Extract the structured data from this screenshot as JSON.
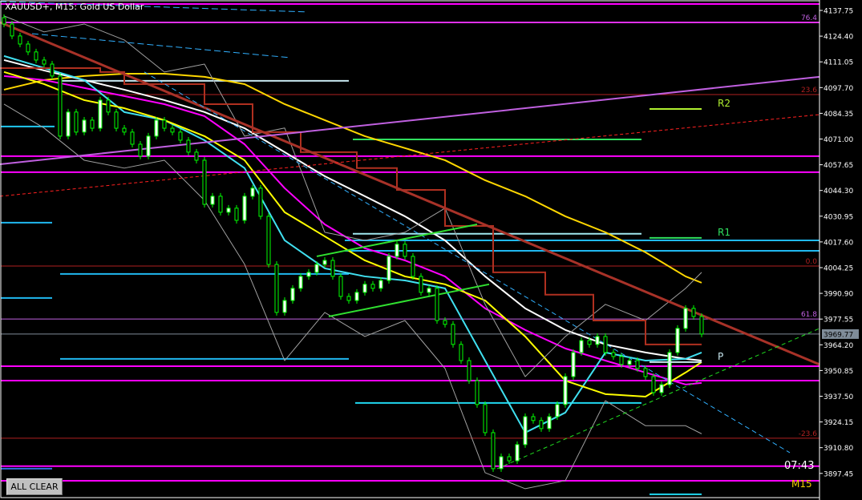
{
  "header": {
    "title": "XAUUSD+, M15:  Gold US Dollar"
  },
  "controls": {
    "all_clear": "ALL CLEAR",
    "timer": "07:43",
    "timeframe": "M15"
  },
  "colors": {
    "background": "#000000",
    "bull": "#00ff00",
    "axis": "#ffffff",
    "price_box": "#7f8c99"
  },
  "chart_data": {
    "type": "candlestick",
    "symbol": "XAUUSD+",
    "timeframe": "M15",
    "ylim": [
      3886,
      4143
    ],
    "y_ticks": [
      "4137.75",
      "4124.40",
      "4111.05",
      "4097.70",
      "4084.35",
      "4071.00",
      "4057.65",
      "4044.30",
      "4030.95",
      "4017.60",
      "4004.25",
      "3990.90",
      "3977.55",
      "3964.20",
      "3950.85",
      "3937.50",
      "3924.15",
      "3910.80",
      "3897.45"
    ],
    "current_price": "3969.77",
    "first_open": 4134.0,
    "close": [
      4130.7,
      4124.5,
      4120.3,
      4116.2,
      4112.0,
      4109.9,
      4103.7,
      4072.5,
      4085.0,
      4074.6,
      4080.8,
      4076.6,
      4091.2,
      4085.0,
      4076.6,
      4074.6,
      4068.3,
      4062.1,
      4072.5,
      4080.8,
      4076.6,
      4074.6,
      4070.4,
      4064.2,
      4060.0,
      4037.1,
      4041.3,
      4033.0,
      4035.1,
      4028.8,
      4041.3,
      4045.5,
      4030.9,
      4005.9,
      3981.0,
      3987.2,
      3993.5,
      3999.7,
      4001.8,
      4005.9,
      4008.0,
      3999.7,
      3989.3,
      3987.2,
      3991.4,
      3995.6,
      3993.5,
      3997.6,
      4010.1,
      4016.4,
      4010.1,
      3999.7,
      3991.4,
      3993.5,
      3976.8,
      3974.8,
      3964.4,
      3956.0,
      3945.6,
      3933.2,
      3918.6,
      3899.9,
      3906.1,
      3904.0,
      3912.4,
      3926.9,
      3924.9,
      3920.7,
      3926.9,
      3933.2,
      3947.7,
      3960.2,
      3966.4,
      3964.4,
      3968.5,
      3960.2,
      3958.1,
      3954.0,
      3956.0,
      3951.9,
      3947.7,
      3939.4,
      3943.5,
      3960.2,
      3972.7,
      3983.1,
      3978.9,
      3969.8
    ],
    "indicator_bars": [
      0,
      5,
      10,
      15,
      20,
      25,
      30,
      35,
      40,
      45,
      50,
      55,
      60,
      65,
      70,
      75,
      80,
      85,
      87
    ],
    "indicators": [
      {
        "key": "ma_slow",
        "color": "#ffd700",
        "width": 2,
        "values": [
          4096.6,
          4101.6,
          4103.7,
          4104.9,
          4104.9,
          4103.3,
          4099.5,
          4089.1,
          4080.8,
          4072.5,
          4066.3,
          4060.0,
          4049.6,
          4041.3,
          4030.9,
          4022.6,
          4012.2,
          3999.7,
          3996.4
        ]
      },
      {
        "key": "ma_white",
        "color": "#ffffff",
        "width": 2,
        "values": [
          4112.0,
          4106.6,
          4101.6,
          4096.6,
          4091.2,
          4085.0,
          4076.6,
          4064.2,
          4051.7,
          4041.3,
          4030.9,
          4018.4,
          3999.7,
          3983.1,
          3971.9,
          3964.4,
          3960.2,
          3956.9,
          3956.0
        ]
      },
      {
        "key": "ma_magenta",
        "color": "#ff00ff",
        "width": 2,
        "values": [
          4103.7,
          4101.6,
          4097.5,
          4093.3,
          4089.1,
          4082.9,
          4068.3,
          4045.5,
          4026.7,
          4014.3,
          4008.0,
          3999.7,
          3983.1,
          3971.9,
          3962.3,
          3956.0,
          3949.8,
          3943.6,
          3944.4
        ]
      },
      {
        "key": "ma_cyan",
        "color": "#40e0f0",
        "width": 2,
        "values": [
          4114.1,
          4107.9,
          4101.6,
          4085.0,
          4080.8,
          4070.4,
          4055.9,
          4018.4,
          4003.9,
          3999.7,
          3997.6,
          3993.5,
          3956.0,
          3918.6,
          3929.0,
          3960.2,
          3956.0,
          3956.9,
          3960.2
        ]
      },
      {
        "key": "ma_fast",
        "color": "#ffff00",
        "width": 2,
        "values": [
          4105.8,
          4099.5,
          4091.2,
          4087.0,
          4080.8,
          4072.5,
          4060.0,
          4033.0,
          4020.5,
          4008.0,
          3999.7,
          3995.6,
          3987.2,
          3968.5,
          3945.6,
          3938.6,
          3937.3,
          3949.8,
          3955.2
        ]
      },
      {
        "key": "bb_upper",
        "color": "#a0a0a0",
        "width": 1,
        "values": [
          4134.9,
          4126.6,
          4130.7,
          4122.4,
          4105.8,
          4109.9,
          4072.5,
          4076.7,
          4022.6,
          4018.4,
          4022.6,
          4035.1,
          3985.2,
          3947.7,
          3968.5,
          3985.2,
          3976.8,
          3993.5,
          4001.8
        ]
      },
      {
        "key": "bb_lower",
        "color": "#a0a0a0",
        "width": 1,
        "values": [
          4089.1,
          4076.7,
          4060.0,
          4055.9,
          4060.0,
          4039.2,
          4006.0,
          3956.0,
          3981.0,
          3968.5,
          3976.8,
          3951.9,
          3897.8,
          3889.5,
          3893.7,
          3935.2,
          3922.2,
          3922.2,
          3918.0
        ]
      }
    ],
    "step_line": {
      "color": "#b03020",
      "steps": [
        [
          -0.5,
          12,
          4107.8
        ],
        [
          12,
          15,
          4105.8
        ],
        [
          15,
          25,
          4099.5
        ],
        [
          25,
          31,
          4089.1
        ],
        [
          31,
          37,
          4074.6
        ],
        [
          37,
          44,
          4064.2
        ],
        [
          44,
          49,
          4055.9
        ],
        [
          49,
          55,
          4044.6
        ],
        [
          55,
          61,
          4025.9
        ],
        [
          61,
          67.5,
          4001.8
        ],
        [
          67.5,
          73.5,
          3990.2
        ],
        [
          73.5,
          80,
          3976.8
        ],
        [
          80,
          87,
          3964.4
        ]
      ]
    },
    "trendlines": [
      {
        "key": "down-trend",
        "color": "#a83228",
        "width": 3,
        "dash": "",
        "p1": [
          -0.5,
          4131.6
        ],
        "p2": [
          101.7,
          3954.0
        ]
      },
      {
        "key": "purple-trend",
        "color": "#c060e0",
        "width": 2,
        "dash": "",
        "p1": [
          -0.5,
          4057.9
        ],
        "p2": [
          101.7,
          4103.3
        ]
      },
      {
        "key": "red-dashed",
        "color": "#ff2020",
        "width": 1,
        "dash": "4,3",
        "p1": [
          -0.5,
          4041.3
        ],
        "p2": [
          101.7,
          4083.7
        ]
      },
      {
        "key": "green-dashed",
        "color": "#20e020",
        "width": 1,
        "dash": "5,4",
        "p1": [
          61.5,
          3899.9
        ],
        "p2": [
          101.7,
          3972.7
        ]
      },
      {
        "key": "blue-dashed",
        "color": "#30b0ff",
        "width": 1,
        "dash": "6,4",
        "p1": [
          17.5,
          4105.8
        ],
        "p2": [
          98,
          3908.2
        ]
      },
      {
        "key": "channel-upper",
        "color": "#30e030",
        "width": 2,
        "dash": "",
        "p1": [
          39,
          4010.1
        ],
        "p2": [
          59,
          4026.7
        ]
      },
      {
        "key": "channel-lower",
        "color": "#30e030",
        "width": 2,
        "dash": "",
        "p1": [
          40.5,
          3978.9
        ],
        "p2": [
          60.5,
          3995.6
        ]
      },
      {
        "key": "top-dashed-1",
        "color": "#30b0ff",
        "width": 1,
        "dash": "8,4",
        "p1": [
          -0.5,
          4142.4
        ],
        "p2": [
          37.5,
          4137.0
        ]
      },
      {
        "key": "top-dashed-2",
        "color": "#30b0ff",
        "width": 1,
        "dash": "8,4",
        "p1": [
          3.5,
          4125.7
        ],
        "p2": [
          35.5,
          4113.3
        ]
      }
    ],
    "levels": [
      {
        "price": 4141.1,
        "color": "#ff00ff",
        "width": 2
      },
      {
        "price": 4131.5,
        "color": "#ff00ff",
        "width": 2
      },
      {
        "price": 4062.1,
        "color": "#ff00ff",
        "width": 2
      },
      {
        "price": 4053.8,
        "color": "#ff00ff",
        "width": 2
      },
      {
        "price": 3953.1,
        "color": "#ff00ff",
        "width": 2
      },
      {
        "price": 3945.6,
        "color": "#ff00ff",
        "width": 2
      },
      {
        "price": 3901.2,
        "color": "#ff00ff",
        "width": 2
      },
      {
        "price": 3893.6,
        "color": "#ff00ff",
        "width": 2
      },
      {
        "price": 4018.4,
        "color": "#20b8f0",
        "width": 2,
        "from": 42.5
      },
      {
        "price": 4013.0,
        "color": "#20b8f0",
        "width": 2,
        "from": 42.5
      },
      {
        "price": 3969.77,
        "color": "#7f8c99",
        "width": 1
      }
    ],
    "segments": [
      {
        "price": 4101.2,
        "from": 7,
        "to": 43,
        "color": "#c8e8f0"
      },
      {
        "price": 4077.5,
        "from": -0.5,
        "to": 6.3,
        "color": "#20c8f0"
      },
      {
        "price": 4027.6,
        "from": -0.5,
        "to": 6,
        "color": "#20b8f0"
      },
      {
        "price": 4001.0,
        "from": 7,
        "to": 43,
        "color": "#20b8f0"
      },
      {
        "price": 3988.5,
        "from": -0.5,
        "to": 6,
        "color": "#20b8f0"
      },
      {
        "price": 3956.9,
        "from": 7,
        "to": 43,
        "color": "#20b8f0"
      },
      {
        "price": 3934.0,
        "from": 43.8,
        "to": 79.5,
        "color": "#20d8f0"
      },
      {
        "price": 4021.8,
        "from": 43.5,
        "to": 79.5,
        "color": "#a0e8f0"
      },
      {
        "price": 4070.8,
        "from": 43.5,
        "to": 79.5,
        "color": "#30e060"
      },
      {
        "price": 3899.9,
        "from": -0.5,
        "to": 6,
        "color": "#3070e0"
      },
      {
        "price": 3886.6,
        "from": 80.5,
        "to": 87,
        "color": "#20d8f0"
      }
    ],
    "pivots": [
      {
        "label": "R2",
        "price": 4086.6,
        "color": "#b0f030"
      },
      {
        "label": "R1",
        "price": 4019.7,
        "color": "#30e060"
      },
      {
        "label": "P",
        "price": 3955.2,
        "color": "#c8e8f0"
      }
    ],
    "fib_levels": [
      {
        "label": "76.4",
        "price": 4131.5,
        "color": "#c060e0"
      },
      {
        "label": "23.6",
        "price": 4094.1,
        "color": "#b02020"
      },
      {
        "label": "0.0",
        "price": 4005.1,
        "color": "#b02020"
      },
      {
        "label": "61.8",
        "price": 3977.6,
        "color": "#c060e0"
      },
      {
        "label": "-23.6",
        "price": 3915.7,
        "color": "#b02020"
      }
    ]
  }
}
